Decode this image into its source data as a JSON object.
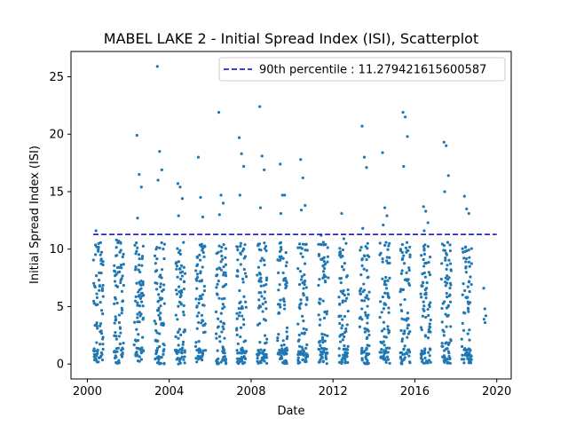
{
  "chart_data": {
    "type": "scatter",
    "title": "MABEL LAKE 2 - Initial Spread Index (ISI), Scatterplot",
    "xlabel": "Date",
    "ylabel": "Initial Spread Index (ISI)",
    "xlim": [
      "1999-03-15",
      "2020-09-15"
    ],
    "ylim": [
      -1.3,
      27.2
    ],
    "xticks": [
      "2000",
      "2004",
      "2008",
      "2012",
      "2016",
      "2020"
    ],
    "yticks": [
      0,
      5,
      10,
      15,
      20,
      25
    ],
    "grid": false,
    "legend_position": "top-right",
    "point_color": "#1f77b4",
    "reference_line": {
      "label": "90th percentile : 11.279421615600587",
      "value": 11.279421615600587,
      "color": "#0000cc",
      "style": "dashed"
    },
    "seasons": [
      {
        "year": 2000,
        "start": "2000-04-15",
        "end": "2000-10-10",
        "peaks": [
          11.6,
          9.8,
          9.5
        ]
      },
      {
        "year": 2001,
        "start": "2001-04-15",
        "end": "2001-10-10",
        "peaks": [
          10.8,
          10.7,
          9.9
        ]
      },
      {
        "year": 2002,
        "start": "2002-04-15",
        "end": "2002-10-10",
        "peaks": [
          19.9,
          16.5,
          15.4,
          12.7
        ]
      },
      {
        "year": 2003,
        "start": "2003-04-15",
        "end": "2003-10-10",
        "peaks": [
          25.9,
          18.5,
          16.9,
          16.0
        ]
      },
      {
        "year": 2004,
        "start": "2004-04-15",
        "end": "2004-10-10",
        "peaks": [
          15.7,
          15.4,
          14.4,
          12.9
        ]
      },
      {
        "year": 2005,
        "start": "2005-04-15",
        "end": "2005-10-10",
        "peaks": [
          18.0,
          14.5,
          12.8
        ]
      },
      {
        "year": 2006,
        "start": "2006-04-15",
        "end": "2006-10-10",
        "peaks": [
          21.9,
          14.7,
          14.0,
          13.0
        ]
      },
      {
        "year": 2007,
        "start": "2007-04-15",
        "end": "2007-10-10",
        "peaks": [
          19.7,
          18.3,
          17.2,
          14.7
        ]
      },
      {
        "year": 2008,
        "start": "2008-04-15",
        "end": "2008-10-10",
        "peaks": [
          22.4,
          18.1,
          16.9,
          13.6
        ]
      },
      {
        "year": 2009,
        "start": "2009-04-15",
        "end": "2009-10-10",
        "peaks": [
          17.4,
          14.7,
          14.7,
          13.1
        ]
      },
      {
        "year": 2010,
        "start": "2010-04-15",
        "end": "2010-10-10",
        "peaks": [
          17.8,
          16.2,
          13.8,
          13.4
        ]
      },
      {
        "year": 2011,
        "start": "2011-04-15",
        "end": "2011-10-10",
        "peaks": [
          11.2,
          10.6,
          10.4
        ]
      },
      {
        "year": 2012,
        "start": "2012-04-15",
        "end": "2012-10-10",
        "peaks": [
          13.1,
          10.9,
          10.5
        ]
      },
      {
        "year": 2013,
        "start": "2013-04-15",
        "end": "2013-10-10",
        "peaks": [
          20.7,
          18.0,
          17.1,
          11.8
        ]
      },
      {
        "year": 2014,
        "start": "2014-04-15",
        "end": "2014-10-10",
        "peaks": [
          18.4,
          13.6,
          12.9,
          12.1
        ]
      },
      {
        "year": 2015,
        "start": "2015-04-15",
        "end": "2015-10-10",
        "peaks": [
          21.9,
          21.5,
          19.8,
          17.2
        ]
      },
      {
        "year": 2016,
        "start": "2016-04-15",
        "end": "2016-10-10",
        "peaks": [
          13.7,
          13.3,
          12.3,
          11.6
        ]
      },
      {
        "year": 2017,
        "start": "2017-04-15",
        "end": "2017-10-10",
        "peaks": [
          19.3,
          19.0,
          16.4,
          15.0
        ]
      },
      {
        "year": 2018,
        "start": "2018-04-15",
        "end": "2018-10-10",
        "peaks": [
          14.6,
          13.5,
          13.1
        ]
      },
      {
        "year": 2019,
        "start": "2019-04-20",
        "end": "2019-07-15",
        "peaks": [
          6.6,
          4.8,
          4.2,
          3.9,
          3.6
        ]
      }
    ]
  }
}
